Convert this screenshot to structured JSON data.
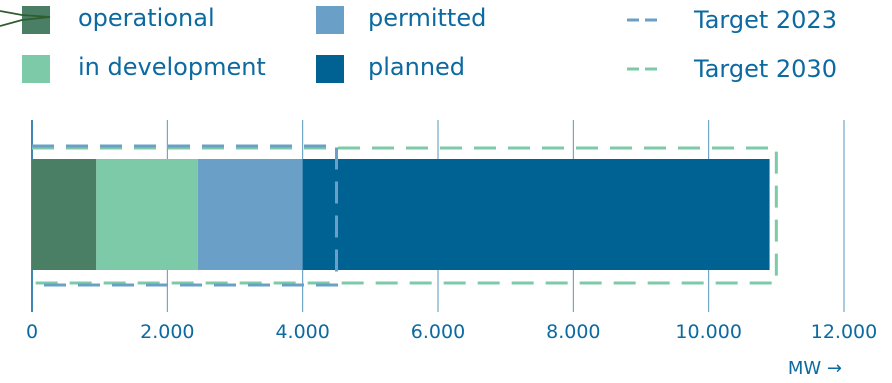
{
  "chart_data": {
    "type": "bar",
    "orientation": "horizontal",
    "stacked": true,
    "series": [
      {
        "name": "operational",
        "value": 950,
        "color": "#4a7f65"
      },
      {
        "name": "in development",
        "value": 1500,
        "color": "#7ccaa8"
      },
      {
        "name": "permitted",
        "value": 1550,
        "color": "#6aa0c7"
      },
      {
        "name": "planned",
        "value": 6900,
        "color": "#006193"
      }
    ],
    "targets": [
      {
        "name": "Target 2023",
        "value": 4500,
        "color": "#6aa0c7",
        "style": "dashed"
      },
      {
        "name": "Target 2030",
        "value": 11000,
        "color": "#7ccaa8",
        "style": "dashed"
      }
    ],
    "xlim": [
      0,
      12000
    ],
    "xticks": [
      0,
      2000,
      4000,
      6000,
      8000,
      10000,
      12000
    ],
    "xtick_labels": [
      "0",
      "2.000",
      "4.000",
      "6.000",
      "8.000",
      "10.000",
      "12.000"
    ],
    "xlabel": "MW →",
    "grid": true,
    "legend_position": "top"
  }
}
